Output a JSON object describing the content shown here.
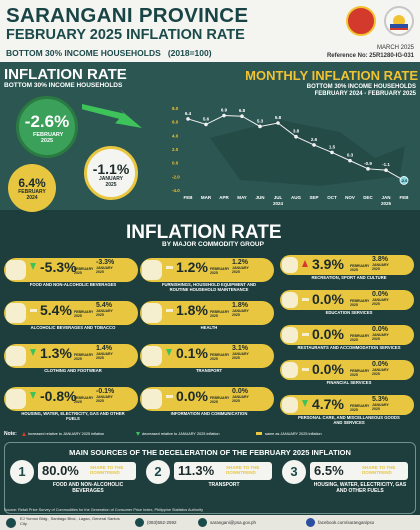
{
  "header": {
    "title": "SARANGANI PROVINCE",
    "subtitle_a": "FEBRUARY 2025",
    "subtitle_b": "INFLATION RATE",
    "subtitle_c": "BOTTOM 30% INCOME HOUSEHOLDS",
    "base": "(2018=100)",
    "release_date": "MARCH 2025",
    "reference": "Reference No: 25R1280-IG-031"
  },
  "headline": {
    "title": "INFLATION RATE",
    "subtitle": "BOTTOM 30% INCOME HOUSEHOLDS",
    "current_value": "-2.6%",
    "current_label": "FEBRUARY 2025",
    "previous_value": "-1.1%",
    "previous_label": "JANUARY 2025",
    "year_ago_value": "6.4%",
    "year_ago_label": "FEBRUARY 2024"
  },
  "chart_data": {
    "type": "line",
    "title": "MONTHLY INFLATION RATE",
    "subtitle": "BOTTOM 30% INCOME HOUSEHOLDS",
    "period": "FEBRUARY 2024 - FEBRUARY 2025",
    "x": [
      "FEB",
      "MAR",
      "APR",
      "MAY",
      "JUN",
      "JUL",
      "AUG",
      "SEP",
      "OCT",
      "NOV",
      "DEC",
      "JAN",
      "FEB"
    ],
    "year_labels": {
      "JUL": "2024",
      "JAN": "2025"
    },
    "values": [
      6.4,
      5.6,
      6.9,
      6.8,
      5.3,
      5.8,
      3.8,
      2.6,
      1.5,
      0.3,
      -0.9,
      -1.1,
      -2.6
    ],
    "value_labels": [
      "6.4",
      "5.6",
      "6.9",
      "6.8",
      "5.3",
      "5.8",
      "3.8",
      "2.6",
      "1.5",
      "0.3",
      "-0.9",
      "-1.1",
      "-2.6"
    ],
    "y_ticks": [
      "8.0",
      "6.0",
      "4.0",
      "2.0",
      "0.0",
      "-2.0",
      "-4.0"
    ],
    "ylim": [
      -4,
      8
    ],
    "colors": {
      "line": "#f2f2f2",
      "dot": "#f2f2f2",
      "last_dot": "#7fd6e0",
      "tick": "#f1c232"
    }
  },
  "commodity": {
    "title": "INFLATION RATE",
    "subtitle": "BY MAJOR COMMODITY GROUP",
    "prev_label": "JANUARY 2025",
    "cur_label": "FEBRUARY 2025",
    "items": [
      {
        "name": "FOOD AND NON-ALCOHOLIC BEVERAGES",
        "value": "-5.3%",
        "prev": "-3.3%",
        "trend": "down",
        "icon": "food-basket-icon"
      },
      {
        "name": "ALCOHOLIC BEVERAGES AND TOBACCO",
        "value": "5.4%",
        "prev": "5.4%",
        "trend": "same",
        "icon": "bottle-icon"
      },
      {
        "name": "CLOTHING AND FOOTWEAR",
        "value": "1.3%",
        "prev": "1.4%",
        "trend": "down",
        "icon": "shirt-icon"
      },
      {
        "name": "HOUSING, WATER, ELECTRICITY, GAS AND OTHER FUELS",
        "value": "-0.8%",
        "prev": "-0.1%",
        "trend": "down",
        "icon": "house-icon"
      },
      {
        "name": "FURNISHINGS, HOUSEHOLD EQUIPMENT AND ROUTINE HOUSEHOLD MAINTENANCE",
        "value": "1.2%",
        "prev": "1.2%",
        "trend": "same",
        "icon": "sofa-icon"
      },
      {
        "name": "HEALTH",
        "value": "1.8%",
        "prev": "1.8%",
        "trend": "same",
        "icon": "medkit-icon"
      },
      {
        "name": "TRANSPORT",
        "value": "0.1%",
        "prev": "3.1%",
        "trend": "down",
        "icon": "bus-icon"
      },
      {
        "name": "INFORMATION AND COMMUNICATION",
        "value": "0.0%",
        "prev": "0.0%",
        "trend": "same",
        "icon": "phone-icon"
      },
      {
        "name": "RECREATION, SPORT AND CULTURE",
        "value": "3.9%",
        "prev": "3.8%",
        "trend": "up",
        "icon": "ball-icon"
      },
      {
        "name": "EDUCATION SERVICES",
        "value": "0.0%",
        "prev": "0.0%",
        "trend": "same",
        "icon": "book-icon"
      },
      {
        "name": "RESTAURANTS AND ACCOMMODATION SERVICES",
        "value": "0.0%",
        "prev": "0.0%",
        "trend": "same",
        "icon": "cup-icon"
      },
      {
        "name": "FINANCIAL SERVICES",
        "value": "0.0%",
        "prev": "0.0%",
        "trend": "same",
        "icon": "money-icon"
      },
      {
        "name": "PERSONAL CARE, AND MISCELLANEOUS GOODS AND SERVICES",
        "value": "4.7%",
        "prev": "5.3%",
        "trend": "down",
        "icon": "bag-icon"
      }
    ]
  },
  "legend": {
    "note_label": "Note:",
    "up": "increased relative to JANUARY 2025 inflation",
    "down": "decreased relative to JANUARY 2025 inflation",
    "same": "same as JANUARY 2025 inflation"
  },
  "sources": {
    "title": "MAIN SOURCES OF THE DECELERATION OF THE FEBRUARY 2025 INFLATION",
    "share_label": "SHARE TO THE DOWNTREND",
    "items": [
      {
        "rank": "1",
        "value": "80.0%",
        "name": "FOOD AND NON-ALCOHOLIC BEVERAGES"
      },
      {
        "rank": "2",
        "value": "11.3%",
        "name": "TRANSPORT"
      },
      {
        "rank": "3",
        "value": "6.5%",
        "name": "HOUSING, WATER, ELECTRICITY, GAS AND OTHER FUELS"
      }
    ]
  },
  "footer": {
    "source_note": "Source: Retail Price Survey of Commodities for the Generation of Consumer Price Index, Philippine Statistics Authority",
    "address": "EJ Yumon Bldg., Santiago Blvd., Lagao, General Santos City",
    "phone": "(083)552-2592",
    "email": "sarangani@psa.gov.ph",
    "facebook": "facebook.com/saranganipso"
  },
  "colors": {
    "dark_teal": "#1d3e3c",
    "band": "#2b5652",
    "yellow": "#e8c640",
    "green_bubble": "#3aa05a",
    "down_arrow": "#3ec25a",
    "up_arrow": "#d63a2f"
  }
}
